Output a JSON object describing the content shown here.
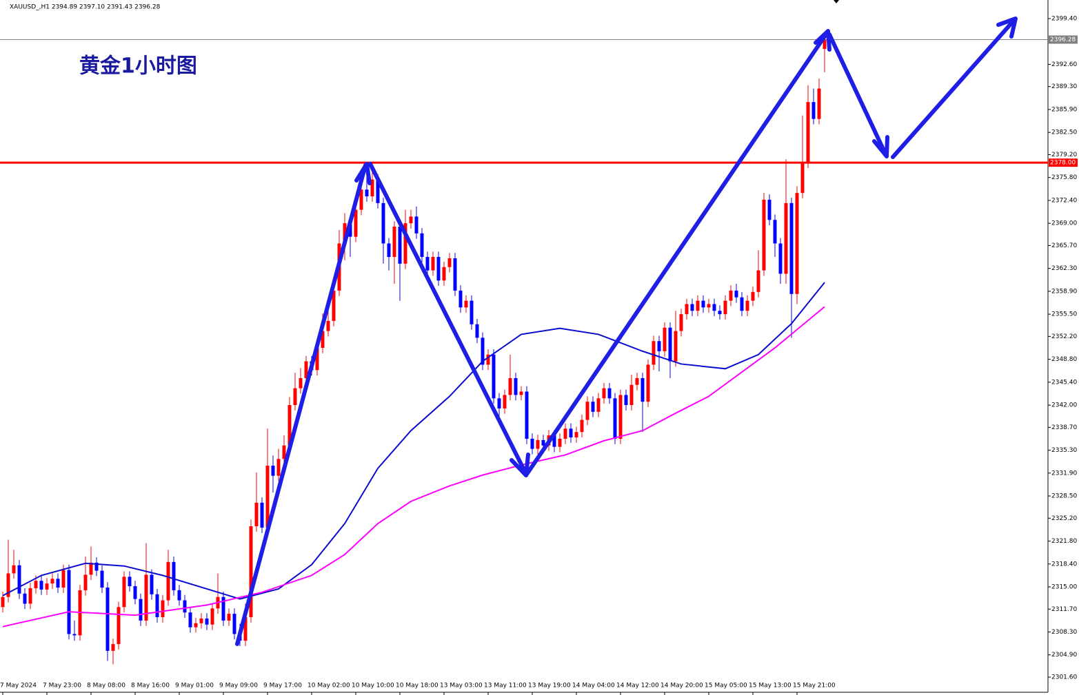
{
  "chart_data": {
    "type": "candlestick",
    "info": "XAUUSD_,H1  2394.89 2397.10 2391.43 2396.28",
    "title": "黄金1小时图",
    "up_color": "#ff0000",
    "down_color": "#0000ff",
    "categories": [
      "7 May 2024",
      null,
      null,
      null,
      null,
      null,
      null,
      null,
      "7 May 23:00",
      null,
      null,
      null,
      null,
      null,
      null,
      null,
      "8 May 08:00",
      null,
      null,
      null,
      null,
      null,
      null,
      null,
      "8 May 16:00",
      null,
      null,
      null,
      null,
      null,
      null,
      null,
      "9 May 01:00",
      null,
      null,
      null,
      null,
      null,
      null,
      null,
      "9 May 09:00",
      null,
      null,
      null,
      null,
      null,
      null,
      null,
      "9 May 17:00",
      null,
      null,
      null,
      null,
      null,
      null,
      null,
      "10 May 02:00",
      null,
      null,
      null,
      null,
      null,
      null,
      null,
      "10 May 10:00",
      null,
      null,
      null,
      null,
      null,
      null,
      null,
      "10 May 18:00",
      null,
      null,
      null,
      null,
      null,
      null,
      null,
      "13 May 03:00",
      null,
      null,
      null,
      null,
      null,
      null,
      null,
      "13 May 11:00",
      null,
      null,
      null,
      null,
      null,
      null,
      null,
      "13 May 19:00",
      null,
      null,
      null,
      null,
      null,
      null,
      null,
      "14 May 04:00",
      null,
      null,
      null,
      null,
      null,
      null,
      null,
      "14 May 12:00",
      null,
      null,
      null,
      null,
      null,
      null,
      null,
      "14 May 20:00",
      null,
      null,
      null,
      null,
      null,
      null,
      null,
      "15 May 05:00",
      null,
      null,
      null,
      null,
      null,
      null,
      null,
      "15 May 13:00",
      null,
      null,
      null,
      null,
      null,
      null,
      null,
      "15 May 21:00",
      null,
      null,
      null,
      null,
      null
    ],
    "ohlc": [
      [
        2312.0,
        2314.3,
        2311.2,
        2313.5
      ],
      [
        2313.5,
        2322.0,
        2312.7,
        2317.0
      ],
      [
        2317.0,
        2320.5,
        2316.2,
        2318.2
      ],
      [
        2318.2,
        2319.0,
        2313.2,
        2314.0
      ],
      [
        2314.0,
        2314.8,
        2311.7,
        2312.5
      ],
      [
        2312.5,
        2315.6,
        2311.7,
        2314.8
      ],
      [
        2314.8,
        2316.7,
        2314.0,
        2315.9
      ],
      [
        2315.9,
        2316.7,
        2313.8,
        2314.6
      ],
      [
        2314.6,
        2316.3,
        2313.8,
        2315.5
      ],
      [
        2315.5,
        2317.0,
        2314.7,
        2316.2
      ],
      [
        2316.2,
        2317.0,
        2314.1,
        2314.9
      ],
      [
        2314.9,
        2318.3,
        2314.1,
        2317.5
      ],
      [
        2317.5,
        2318.3,
        2307.2,
        2308.0
      ],
      [
        2308.0,
        2310.0,
        2307.0,
        2307.8
      ],
      [
        2307.8,
        2315.3,
        2307.0,
        2314.5
      ],
      [
        2314.5,
        2319.5,
        2313.7,
        2316.8
      ],
      [
        2316.8,
        2321.0,
        2316.0,
        2318.6
      ],
      [
        2318.6,
        2319.4,
        2316.6,
        2317.4
      ],
      [
        2317.4,
        2318.2,
        2314.1,
        2314.9
      ],
      [
        2314.9,
        2315.7,
        2304.0,
        2305.5
      ],
      [
        2305.5,
        2307.3,
        2303.5,
        2306.5
      ],
      [
        2306.5,
        2312.8,
        2305.7,
        2312.0
      ],
      [
        2312.0,
        2317.3,
        2311.2,
        2316.5
      ],
      [
        2316.5,
        2317.3,
        2314.3,
        2315.1
      ],
      [
        2315.1,
        2315.9,
        2312.4,
        2313.2
      ],
      [
        2313.2,
        2314.0,
        2309.2,
        2310.0
      ],
      [
        2310.0,
        2321.5,
        2309.2,
        2316.8
      ],
      [
        2316.8,
        2317.6,
        2313.1,
        2313.9
      ],
      [
        2313.9,
        2314.7,
        2309.7,
        2310.5
      ],
      [
        2310.5,
        2313.8,
        2309.7,
        2313.0
      ],
      [
        2313.0,
        2320.5,
        2312.2,
        2318.7
      ],
      [
        2318.7,
        2319.5,
        2313.7,
        2314.5
      ],
      [
        2314.5,
        2315.3,
        2312.2,
        2313.0
      ],
      [
        2313.0,
        2313.8,
        2310.4,
        2311.2
      ],
      [
        2311.2,
        2312.0,
        2308.2,
        2309.0
      ],
      [
        2309.0,
        2310.4,
        2308.2,
        2309.6
      ],
      [
        2309.6,
        2311.1,
        2308.8,
        2310.3
      ],
      [
        2310.3,
        2311.1,
        2308.6,
        2309.4
      ],
      [
        2309.4,
        2312.6,
        2308.6,
        2311.8
      ],
      [
        2311.8,
        2317.0,
        2311.0,
        2313.5
      ],
      [
        2313.5,
        2314.3,
        2309.2,
        2310.0
      ],
      [
        2310.0,
        2311.8,
        2309.2,
        2311.0
      ],
      [
        2311.0,
        2311.8,
        2307.2,
        2308.0
      ],
      [
        2308.0,
        2309.5,
        2306.2,
        2307.0
      ],
      [
        2307.0,
        2312.5,
        2306.2,
        2310.5
      ],
      [
        2310.5,
        2325.0,
        2309.7,
        2324.0
      ],
      [
        2324.0,
        2332.0,
        2323.2,
        2327.5
      ],
      [
        2327.5,
        2328.3,
        2323.0,
        2323.8
      ],
      [
        2323.8,
        2338.5,
        2323.0,
        2333.0
      ],
      [
        2333.0,
        2334.5,
        2329.0,
        2331.5
      ],
      [
        2331.5,
        2335.5,
        2330.7,
        2334.0
      ],
      [
        2334.0,
        2337.5,
        2333.2,
        2336.0
      ],
      [
        2336.0,
        2343.2,
        2335.2,
        2342.0
      ],
      [
        2342.0,
        2346.8,
        2341.2,
        2344.5
      ],
      [
        2344.5,
        2347.5,
        2343.7,
        2346.0
      ],
      [
        2346.0,
        2349.3,
        2345.2,
        2348.5
      ],
      [
        2348.5,
        2349.3,
        2346.4,
        2347.2
      ],
      [
        2347.2,
        2351.3,
        2346.4,
        2350.5
      ],
      [
        2350.5,
        2355.6,
        2349.7,
        2353.0
      ],
      [
        2353.0,
        2357.0,
        2352.2,
        2354.5
      ],
      [
        2354.5,
        2359.8,
        2353.7,
        2359.0
      ],
      [
        2359.0,
        2368.0,
        2358.2,
        2366.0
      ],
      [
        2366.0,
        2370.5,
        2363.5,
        2369.0
      ],
      [
        2369.0,
        2369.8,
        2364.0,
        2367.0
      ],
      [
        2367.0,
        2373.0,
        2366.2,
        2371.0
      ],
      [
        2371.0,
        2376.5,
        2370.2,
        2374.0
      ],
      [
        2374.0,
        2378.0,
        2372.2,
        2373.0
      ],
      [
        2373.0,
        2377.0,
        2372.2,
        2375.5
      ],
      [
        2375.5,
        2376.3,
        2371.2,
        2372.0
      ],
      [
        2372.0,
        2372.8,
        2363.0,
        2366.0
      ],
      [
        2366.0,
        2366.8,
        2362.0,
        2364.0
      ],
      [
        2364.0,
        2369.3,
        2360.0,
        2368.5
      ],
      [
        2368.5,
        2369.3,
        2357.5,
        2363.0
      ],
      [
        2363.0,
        2371.0,
        2362.2,
        2369.0
      ],
      [
        2369.0,
        2371.0,
        2368.2,
        2370.0
      ],
      [
        2370.0,
        2371.5,
        2366.7,
        2367.5
      ],
      [
        2367.5,
        2368.3,
        2363.2,
        2364.0
      ],
      [
        2364.0,
        2364.8,
        2361.2,
        2362.0
      ],
      [
        2362.0,
        2364.8,
        2361.2,
        2364.0
      ],
      [
        2364.0,
        2364.8,
        2359.7,
        2360.5
      ],
      [
        2360.5,
        2363.3,
        2359.7,
        2362.5
      ],
      [
        2362.5,
        2364.6,
        2361.7,
        2363.8
      ],
      [
        2363.8,
        2364.6,
        2358.2,
        2359.0
      ],
      [
        2359.0,
        2359.8,
        2355.7,
        2356.5
      ],
      [
        2356.5,
        2358.3,
        2355.7,
        2357.5
      ],
      [
        2357.5,
        2358.3,
        2353.2,
        2354.0
      ],
      [
        2354.0,
        2354.8,
        2351.2,
        2352.0
      ],
      [
        2352.0,
        2352.8,
        2347.2,
        2348.0
      ],
      [
        2348.0,
        2350.3,
        2347.2,
        2349.5
      ],
      [
        2349.5,
        2350.3,
        2342.2,
        2343.0
      ],
      [
        2343.0,
        2343.8,
        2340.0,
        2341.5
      ],
      [
        2341.5,
        2344.3,
        2340.7,
        2343.5
      ],
      [
        2343.5,
        2349.5,
        2342.7,
        2346.0
      ],
      [
        2346.0,
        2346.8,
        2342.7,
        2343.5
      ],
      [
        2343.5,
        2344.8,
        2342.7,
        2344.0
      ],
      [
        2344.0,
        2344.8,
        2336.2,
        2337.0
      ],
      [
        2337.0,
        2337.8,
        2334.7,
        2335.5
      ],
      [
        2335.5,
        2337.6,
        2334.7,
        2336.8
      ],
      [
        2336.8,
        2337.6,
        2335.2,
        2336.0
      ],
      [
        2336.0,
        2338.3,
        2335.2,
        2337.5
      ],
      [
        2337.5,
        2338.3,
        2335.0,
        2335.8
      ],
      [
        2335.8,
        2337.8,
        2335.0,
        2337.0
      ],
      [
        2337.0,
        2339.3,
        2336.2,
        2338.5
      ],
      [
        2338.5,
        2339.3,
        2336.4,
        2337.2
      ],
      [
        2337.2,
        2338.8,
        2336.4,
        2338.0
      ],
      [
        2338.0,
        2340.6,
        2337.2,
        2339.8
      ],
      [
        2339.8,
        2343.3,
        2339.0,
        2342.5
      ],
      [
        2342.5,
        2343.3,
        2340.2,
        2341.0
      ],
      [
        2341.0,
        2343.8,
        2340.2,
        2343.0
      ],
      [
        2343.0,
        2345.3,
        2342.2,
        2344.5
      ],
      [
        2344.5,
        2345.3,
        2342.2,
        2343.0
      ],
      [
        2343.0,
        2343.8,
        2336.2,
        2337.0
      ],
      [
        2337.0,
        2344.3,
        2336.2,
        2343.5
      ],
      [
        2343.5,
        2344.3,
        2341.2,
        2342.0
      ],
      [
        2342.0,
        2346.5,
        2341.2,
        2345.0
      ],
      [
        2345.0,
        2346.8,
        2344.2,
        2346.0
      ],
      [
        2346.0,
        2346.8,
        2338.0,
        2342.5
      ],
      [
        2342.5,
        2348.8,
        2341.7,
        2348.0
      ],
      [
        2348.0,
        2352.3,
        2347.2,
        2351.5
      ],
      [
        2351.5,
        2352.3,
        2347.0,
        2350.0
      ],
      [
        2350.0,
        2354.3,
        2349.2,
        2353.5
      ],
      [
        2353.5,
        2354.3,
        2346.0,
        2348.5
      ],
      [
        2348.5,
        2356.0,
        2347.7,
        2353.0
      ],
      [
        2353.0,
        2356.3,
        2352.2,
        2355.5
      ],
      [
        2355.5,
        2357.8,
        2354.7,
        2357.0
      ],
      [
        2357.0,
        2357.8,
        2355.2,
        2356.0
      ],
      [
        2356.0,
        2358.3,
        2355.2,
        2357.5
      ],
      [
        2357.5,
        2358.3,
        2355.7,
        2356.5
      ],
      [
        2356.5,
        2357.8,
        2355.7,
        2357.0
      ],
      [
        2357.0,
        2357.8,
        2355.2,
        2356.0
      ],
      [
        2356.0,
        2356.8,
        2354.7,
        2355.5
      ],
      [
        2355.5,
        2358.3,
        2354.7,
        2357.5
      ],
      [
        2357.5,
        2359.8,
        2356.7,
        2359.0
      ],
      [
        2359.0,
        2360.0,
        2357.2,
        2358.0
      ],
      [
        2358.0,
        2358.8,
        2355.2,
        2356.0
      ],
      [
        2356.0,
        2358.3,
        2355.2,
        2357.5
      ],
      [
        2357.5,
        2359.6,
        2356.7,
        2358.8
      ],
      [
        2358.8,
        2365.0,
        2358.0,
        2362.0
      ],
      [
        2362.0,
        2373.5,
        2361.2,
        2372.5
      ],
      [
        2372.5,
        2373.3,
        2368.7,
        2369.5
      ],
      [
        2369.5,
        2370.3,
        2364.0,
        2366.0
      ],
      [
        2366.0,
        2366.8,
        2360.0,
        2361.5
      ],
      [
        2361.5,
        2378.5,
        2360.0,
        2372.0
      ],
      [
        2372.0,
        2372.8,
        2352.0,
        2358.5
      ],
      [
        2358.5,
        2374.5,
        2357.0,
        2373.5
      ],
      [
        2373.5,
        2385.0,
        2372.7,
        2378.0
      ],
      [
        2378.0,
        2389.5,
        2377.2,
        2387.0
      ],
      [
        2387.0,
        2389.0,
        2383.7,
        2384.5
      ],
      [
        2384.5,
        2390.5,
        2383.7,
        2389.0
      ],
      [
        2394.89,
        2397.1,
        2391.43,
        2396.28
      ]
    ],
    "series": [
      {
        "color": "#0a0ad0",
        "x": [
          0,
          7,
          15,
          22,
          29,
          37,
          43,
          50,
          56,
          62,
          68,
          74,
          81,
          87,
          94,
          101,
          108,
          116,
          123,
          131,
          137,
          143,
          149
        ],
        "values": [
          2313.7,
          2316.7,
          2318.5,
          2318.1,
          2316.7,
          2314.7,
          2313.2,
          2314.7,
          2318.3,
          2324.4,
          2332.6,
          2338.2,
          2343.3,
          2348.5,
          2352.5,
          2353.4,
          2352.5,
          2350.0,
          2348.1,
          2347.4,
          2349.5,
          2354.1,
          2360.2
        ]
      },
      {
        "color": "#ff00ff",
        "x": [
          0,
          12,
          24,
          37,
          47,
          56,
          62,
          68,
          74,
          81,
          87,
          94,
          102,
          109,
          116,
          122,
          128,
          134,
          140,
          149
        ],
        "values": [
          2309.1,
          2311.3,
          2310.8,
          2312.3,
          2314.2,
          2316.7,
          2319.8,
          2324.4,
          2327.7,
          2330.0,
          2331.6,
          2333.1,
          2334.6,
          2336.7,
          2338.2,
          2340.8,
          2343.3,
          2346.9,
          2350.5,
          2356.6
        ]
      }
    ],
    "hlines": [
      {
        "value": 2378,
        "label": "2378.00",
        "color": "#ff0000"
      },
      {
        "value": 2396.28,
        "label": "2396.28",
        "color": "#808080"
      }
    ],
    "ylim": [
      2299.35,
      2402.16
    ],
    "yticks": [
      {
        "value": 2301.6,
        "label": "2301.60"
      },
      {
        "value": 2304.9,
        "label": "2304.90"
      },
      {
        "value": 2308.3,
        "label": "2308.30"
      },
      {
        "value": 2311.7,
        "label": "2311.70"
      },
      {
        "value": 2315,
        "label": "2315.00"
      },
      {
        "value": 2318.4,
        "label": "2318.40"
      },
      {
        "value": 2321.8,
        "label": "2321.80"
      },
      {
        "value": 2325.2,
        "label": "2325.20"
      },
      {
        "value": 2328.5,
        "label": "2328.50"
      },
      {
        "value": 2331.9,
        "label": "2331.90"
      },
      {
        "value": 2335.3,
        "label": "2335.30"
      },
      {
        "value": 2338.7,
        "label": "2338.70"
      },
      {
        "value": 2342,
        "label": "2342.00"
      },
      {
        "value": 2345.4,
        "label": "2345.40"
      },
      {
        "value": 2348.8,
        "label": "2348.80"
      },
      {
        "value": 2352.2,
        "label": "2352.20"
      },
      {
        "value": 2355.5,
        "label": "2355.50"
      },
      {
        "value": 2358.9,
        "label": "2358.90"
      },
      {
        "value": 2362.3,
        "label": "2362.30"
      },
      {
        "value": 2365.7,
        "label": "2365.70"
      },
      {
        "value": 2369,
        "label": "2369.00"
      },
      {
        "value": 2372.4,
        "label": "2372.40"
      },
      {
        "value": 2375.8,
        "label": "2375.80"
      },
      {
        "value": 2379.2,
        "label": "2379.20"
      },
      {
        "value": 2382.5,
        "label": "2382.50"
      },
      {
        "value": 2385.9,
        "label": "2385.90"
      },
      {
        "value": 2389.3,
        "label": "2389.30"
      },
      {
        "value": 2392.6,
        "label": "2392.60"
      },
      {
        "value": 2399.4,
        "label": "2399.40"
      }
    ]
  }
}
